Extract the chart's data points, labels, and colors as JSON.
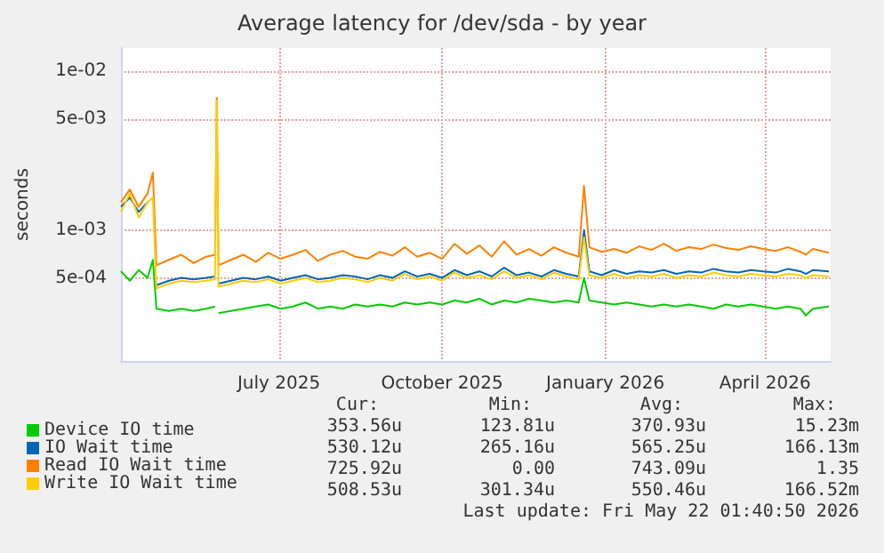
{
  "chart_data": {
    "type": "line",
    "title": "Average latency for /dev/sda - by year",
    "ylabel": "seconds",
    "x": [
      "2025-04-17",
      "2025-04-22",
      "2025-04-27",
      "2025-05-02",
      "2025-05-05",
      "2025-05-07",
      "2025-05-14",
      "2025-05-21",
      "2025-05-28",
      "2025-06-04",
      "2025-06-09",
      "2025-06-10",
      "2025-06-11",
      "2025-06-18",
      "2025-06-25",
      "2025-07-02",
      "2025-07-09",
      "2025-07-16",
      "2025-07-23",
      "2025-07-30",
      "2025-08-06",
      "2025-08-13",
      "2025-08-20",
      "2025-08-27",
      "2025-09-03",
      "2025-09-10",
      "2025-09-17",
      "2025-09-24",
      "2025-10-01",
      "2025-10-08",
      "2025-10-15",
      "2025-10-22",
      "2025-10-29",
      "2025-11-05",
      "2025-11-12",
      "2025-11-19",
      "2025-11-26",
      "2025-12-03",
      "2025-12-10",
      "2025-12-17",
      "2025-12-24",
      "2025-12-31",
      "2026-01-03",
      "2026-01-06",
      "2026-01-13",
      "2026-01-20",
      "2026-01-27",
      "2026-02-03",
      "2026-02-10",
      "2026-02-17",
      "2026-02-24",
      "2026-03-03",
      "2026-03-10",
      "2026-03-17",
      "2026-03-24",
      "2026-03-31",
      "2026-04-07",
      "2026-04-14",
      "2026-04-21",
      "2026-04-28",
      "2026-05-05",
      "2026-05-08",
      "2026-05-12",
      "2026-05-21"
    ],
    "series": [
      {
        "name": "Device IO time",
        "color": "#00cc00",
        "values": [
          0.00055,
          0.00048,
          0.00056,
          0.0005,
          0.00065,
          0.00032,
          0.00031,
          0.00032,
          0.00031,
          0.00032,
          0.00033,
          null,
          0.0003,
          0.00031,
          0.00032,
          0.00033,
          0.00034,
          0.00032,
          0.00033,
          0.00035,
          0.00032,
          0.00033,
          0.00032,
          0.00034,
          0.00033,
          0.00034,
          0.00033,
          0.00035,
          0.00034,
          0.00035,
          0.00034,
          0.00036,
          0.00035,
          0.00037,
          0.00034,
          0.00036,
          0.00035,
          0.00037,
          0.00036,
          0.00035,
          0.00036,
          0.00035,
          0.0005,
          0.00036,
          0.00035,
          0.00034,
          0.00035,
          0.00034,
          0.00033,
          0.00034,
          0.00033,
          0.00034,
          0.00033,
          0.00032,
          0.00034,
          0.00033,
          0.00034,
          0.00033,
          0.00032,
          0.00033,
          0.00032,
          0.00029,
          0.00032,
          0.00033
        ]
      },
      {
        "name": "IO Wait time",
        "color": "#0066b3",
        "values": [
          0.0014,
          0.0016,
          0.0013,
          0.0015,
          null,
          0.00045,
          0.00048,
          0.0005,
          0.00049,
          0.0005,
          0.00051,
          null,
          0.00046,
          0.00048,
          0.0005,
          0.00049,
          0.00051,
          0.00048,
          0.0005,
          0.00052,
          0.00049,
          0.0005,
          0.00052,
          0.00051,
          0.00049,
          0.00052,
          0.0005,
          0.00055,
          0.00051,
          0.00053,
          0.0005,
          0.00056,
          0.00052,
          0.00055,
          0.00051,
          0.00058,
          0.00052,
          0.00054,
          0.00051,
          0.00056,
          0.00053,
          0.00051,
          0.001,
          0.00055,
          0.00052,
          0.00056,
          0.00053,
          0.00055,
          0.00054,
          0.00056,
          0.00053,
          0.00055,
          0.00054,
          0.00057,
          0.00055,
          0.00054,
          0.00056,
          0.00055,
          0.00054,
          0.00057,
          0.00055,
          0.00053,
          0.00056,
          0.00055
        ]
      },
      {
        "name": "Read IO Wait time",
        "color": "#ff8000",
        "values": [
          0.0015,
          0.0018,
          0.0014,
          0.0017,
          0.0023,
          0.0006,
          0.00065,
          0.0007,
          0.00062,
          0.00068,
          0.0007,
          0.0068,
          0.0006,
          0.00065,
          0.0007,
          0.00063,
          0.00072,
          0.00066,
          0.0007,
          0.00075,
          0.00064,
          0.0007,
          0.00074,
          0.00068,
          0.00066,
          0.00073,
          0.00069,
          0.00078,
          0.00068,
          0.00072,
          0.00066,
          0.00082,
          0.00071,
          0.0008,
          0.00068,
          0.00085,
          0.0007,
          0.00076,
          0.00069,
          0.00078,
          0.00072,
          0.00068,
          0.0019,
          0.00078,
          0.00073,
          0.00076,
          0.00072,
          0.00079,
          0.00075,
          0.00082,
          0.00074,
          0.00078,
          0.00076,
          0.00081,
          0.00077,
          0.00075,
          0.00079,
          0.00076,
          0.00074,
          0.00078,
          0.00073,
          0.0007,
          0.00076,
          0.00072
        ]
      },
      {
        "name": "Write IO Wait time",
        "color": "#ffcc00",
        "values": [
          0.0013,
          0.0017,
          0.0012,
          0.0015,
          0.0016,
          0.00043,
          0.00046,
          0.00048,
          0.00047,
          0.00048,
          0.00049,
          0.0065,
          0.00044,
          0.00046,
          0.00048,
          0.00047,
          0.00049,
          0.00046,
          0.00048,
          0.0005,
          0.00047,
          0.00048,
          0.0005,
          0.00049,
          0.00047,
          0.0005,
          0.00048,
          0.00053,
          0.00049,
          0.00051,
          0.00048,
          0.00054,
          0.0005,
          0.00052,
          0.00049,
          0.00055,
          0.0005,
          0.00052,
          0.00049,
          0.00054,
          0.00051,
          0.00049,
          0.0009,
          0.00052,
          0.0005,
          0.00053,
          0.0005,
          0.00052,
          0.00051,
          0.00053,
          0.0005,
          0.00052,
          0.00051,
          0.00054,
          0.00052,
          0.00051,
          0.00053,
          0.00052,
          0.00051,
          0.00053,
          0.00052,
          0.0005,
          0.00052,
          0.00051
        ]
      }
    ],
    "xlim": [
      "2025-04-17",
      "2026-05-22"
    ],
    "xticks": [
      {
        "value": "2025-07-15",
        "label": "July 2025"
      },
      {
        "value": "2025-10-15",
        "label": "October 2025"
      },
      {
        "value": "2026-01-15",
        "label": "January 2026"
      },
      {
        "value": "2026-04-15",
        "label": "April 2026"
      }
    ],
    "ylim": [
      0.00015,
      0.014
    ],
    "yticks": [
      {
        "value": 0.0005,
        "label": "5e-04"
      },
      {
        "value": 0.001,
        "label": "1e-03"
      },
      {
        "value": 0.005,
        "label": "5e-03"
      },
      {
        "value": 0.01,
        "label": "1e-02"
      }
    ],
    "log": true,
    "grid": true,
    "legend": "bottom",
    "marker": "none",
    "line_style": "solid",
    "annotations": [
      "Cur:",
      "Min:",
      "Avg:",
      "Max:",
      "353.56u",
      "123.81u",
      "370.93u",
      "15.23m",
      "530.12u",
      "265.16u",
      "565.25u",
      "166.13m",
      "725.92u",
      "0.00",
      "743.09u",
      "1.35",
      "508.53u",
      "301.34u",
      "550.46u",
      "166.52m",
      "Last update: Fri May 22 01:40:50 2026"
    ]
  }
}
